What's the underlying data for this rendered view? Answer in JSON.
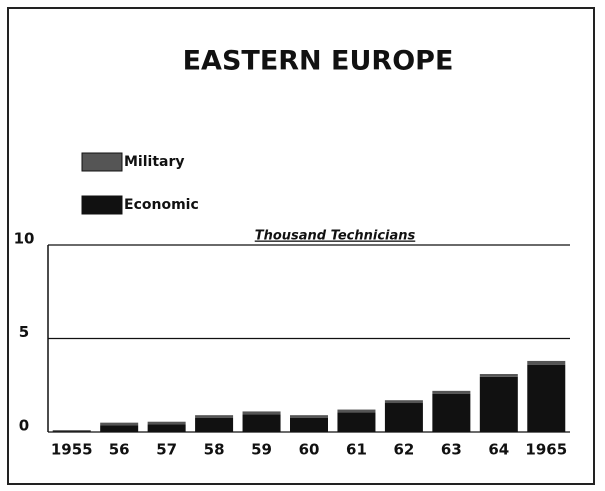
{
  "chart_data": {
    "type": "stacked_bar",
    "title": "EASTERN EUROPE",
    "ylabel": "Thousand Technicians",
    "categories": [
      "1955",
      "56",
      "57",
      "58",
      "59",
      "60",
      "61",
      "62",
      "63",
      "64",
      "1965"
    ],
    "series": [
      {
        "name": "Economic",
        "color": "#111111",
        "values": [
          0.05,
          0.35,
          0.4,
          0.75,
          0.95,
          0.75,
          1.05,
          1.55,
          2.05,
          2.95,
          3.6
        ]
      },
      {
        "name": "Military",
        "color": "#555555",
        "values": [
          0.05,
          0.15,
          0.15,
          0.15,
          0.15,
          0.15,
          0.15,
          0.15,
          0.15,
          0.15,
          0.2
        ]
      }
    ],
    "ylim": [
      0,
      10
    ],
    "yticks": [
      0,
      5,
      10
    ],
    "grid": true
  }
}
